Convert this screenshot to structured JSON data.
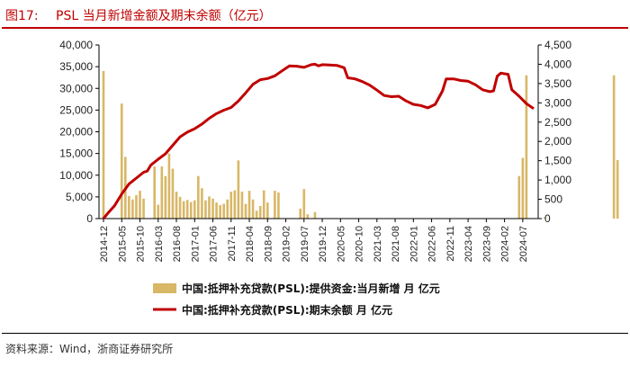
{
  "figure": {
    "number": "图17:",
    "title": "PSL 当月新增金额及期末余额（亿元）",
    "source": "资料来源：Wind，浙商证券研究所"
  },
  "colors": {
    "bar": "#d8b766",
    "line": "#c00000",
    "header_rule": "#c00000"
  },
  "chart_data": {
    "type": "bar+line",
    "x_tick_labels": [
      "2014-12",
      "2015-05",
      "2015-10",
      "2016-03",
      "2016-08",
      "2017-01",
      "2017-06",
      "2017-11",
      "2018-04",
      "2018-09",
      "2019-02",
      "2019-07",
      "2019-12",
      "2020-05",
      "2020-10",
      "2021-03",
      "2021-08",
      "2022-01",
      "2022-06",
      "2022-11",
      "2023-04",
      "2023-09",
      "2024-02",
      "2024-07"
    ],
    "left_axis": {
      "ylim": [
        0,
        40000
      ],
      "ticks": [
        "0",
        "5,000",
        "10,000",
        "15,000",
        "20,000",
        "25,000",
        "30,000",
        "35,000",
        "40,000"
      ]
    },
    "right_axis": {
      "ylim": [
        0,
        4500
      ],
      "ticks": [
        "0",
        "500",
        "1,000",
        "1,500",
        "2,000",
        "2,500",
        "3,000",
        "3,500",
        "4,000",
        "4,500"
      ]
    },
    "series": [
      {
        "name": "中国:抵押补充贷款(PSL):提供资金:当月新增 月 亿元",
        "type": "bar",
        "axis": "left",
        "start": "2014-12",
        "values": [
          34000,
          0,
          0,
          0,
          0,
          26500,
          14200,
          5200,
          4400,
          5400,
          6400,
          4600,
          0,
          0,
          12000,
          3200,
          12000,
          9800,
          15000,
          11500,
          6200,
          5000,
          4000,
          4300,
          3800,
          4200,
          9800,
          7000,
          4200,
          5100,
          4600,
          3700,
          3100,
          3400,
          4400,
          6200,
          6500,
          13400,
          6200,
          3400,
          6400,
          4400,
          1800,
          2900,
          6500,
          3700,
          0,
          6400,
          6000,
          0,
          0,
          0,
          0,
          0,
          2300,
          6800,
          1000,
          0,
          1500,
          0,
          0,
          0,
          0,
          0,
          0,
          0,
          0,
          0,
          0,
          0,
          0,
          0,
          0,
          0,
          0,
          0,
          0,
          0,
          0,
          0,
          0,
          0,
          0,
          0,
          0,
          0,
          0,
          0,
          0,
          0,
          0,
          0,
          0,
          0,
          0,
          0,
          0,
          0,
          0,
          0,
          0,
          0,
          0,
          0,
          0,
          0,
          0,
          0,
          0,
          0,
          0,
          0,
          0,
          0,
          9800,
          14000,
          33000,
          0,
          0,
          0,
          0,
          300,
          0,
          0,
          0,
          0,
          0,
          0,
          0,
          0,
          0,
          0,
          0,
          0,
          0,
          0,
          0,
          0,
          0,
          0,
          33000,
          13500,
          0,
          0,
          0,
          0,
          0,
          0,
          0,
          0,
          0
        ]
      },
      {
        "name": "中国:抵押补充贷款(PSL):期末余额 月 亿元",
        "type": "line",
        "axis": "right",
        "points": [
          [
            "2014-12",
            0
          ],
          [
            "2015-01",
            120
          ],
          [
            "2015-03",
            330
          ],
          [
            "2015-05",
            640
          ],
          [
            "2015-07",
            900
          ],
          [
            "2015-09",
            1050
          ],
          [
            "2015-11",
            1200
          ],
          [
            "2015-12",
            1230
          ],
          [
            "2016-01",
            1390
          ],
          [
            "2016-03",
            1540
          ],
          [
            "2016-05",
            1680
          ],
          [
            "2016-07",
            1900
          ],
          [
            "2016-09",
            2120
          ],
          [
            "2016-11",
            2240
          ],
          [
            "2017-01",
            2330
          ],
          [
            "2017-03",
            2450
          ],
          [
            "2017-05",
            2600
          ],
          [
            "2017-07",
            2720
          ],
          [
            "2017-09",
            2810
          ],
          [
            "2017-11",
            2880
          ],
          [
            "2018-01",
            3050
          ],
          [
            "2018-03",
            3260
          ],
          [
            "2018-05",
            3480
          ],
          [
            "2018-07",
            3600
          ],
          [
            "2018-09",
            3630
          ],
          [
            "2018-11",
            3700
          ],
          [
            "2019-01",
            3830
          ],
          [
            "2019-03",
            3960
          ],
          [
            "2019-05",
            3950
          ],
          [
            "2019-07",
            3920
          ],
          [
            "2019-09",
            3990
          ],
          [
            "2019-10",
            4000
          ],
          [
            "2019-11",
            3960
          ],
          [
            "2019-12",
            3990
          ],
          [
            "2020-02",
            3980
          ],
          [
            "2020-04",
            3970
          ],
          [
            "2020-06",
            3910
          ],
          [
            "2020-07",
            3650
          ],
          [
            "2020-09",
            3620
          ],
          [
            "2020-11",
            3550
          ],
          [
            "2021-01",
            3460
          ],
          [
            "2021-03",
            3330
          ],
          [
            "2021-05",
            3190
          ],
          [
            "2021-07",
            3160
          ],
          [
            "2021-09",
            3170
          ],
          [
            "2021-11",
            3050
          ],
          [
            "2022-01",
            2960
          ],
          [
            "2022-03",
            2930
          ],
          [
            "2022-05",
            2870
          ],
          [
            "2022-07",
            2960
          ],
          [
            "2022-09",
            3310
          ],
          [
            "2022-10",
            3620
          ],
          [
            "2022-12",
            3620
          ],
          [
            "2023-02",
            3580
          ],
          [
            "2023-04",
            3560
          ],
          [
            "2023-06",
            3470
          ],
          [
            "2023-08",
            3340
          ],
          [
            "2023-10",
            3290
          ],
          [
            "2023-11",
            3310
          ],
          [
            "2023-12",
            3690
          ],
          [
            "2024-01",
            3770
          ],
          [
            "2024-03",
            3740
          ],
          [
            "2024-04",
            3340
          ],
          [
            "2024-06",
            3170
          ],
          [
            "2024-08",
            2980
          ],
          [
            "2024-10",
            2850
          ]
        ]
      }
    ],
    "legend_placement": "bottom",
    "grid": false
  }
}
